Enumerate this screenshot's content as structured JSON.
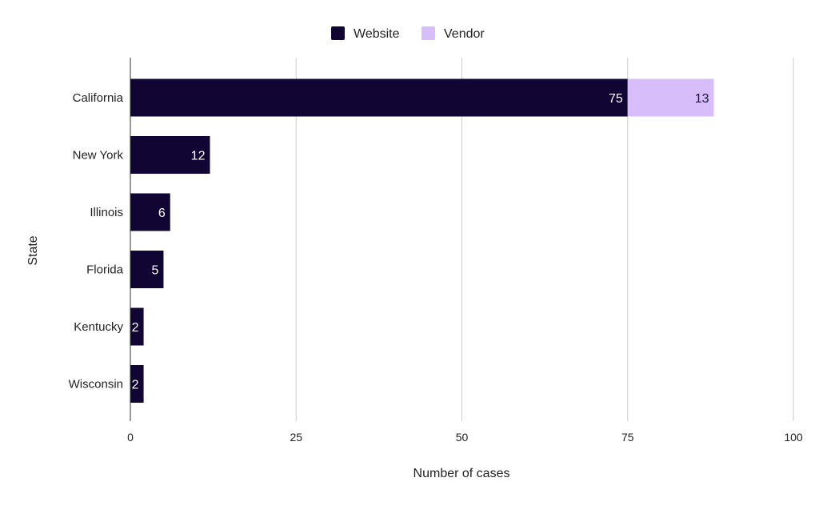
{
  "chart_data": {
    "type": "bar",
    "orientation": "horizontal",
    "stacked": true,
    "categories": [
      "California",
      "New York",
      "Illinois",
      "Florida",
      "Kentucky",
      "Wisconsin"
    ],
    "series": [
      {
        "name": "Website",
        "color": "#110633",
        "values": [
          75,
          12,
          6,
          5,
          2,
          2
        ]
      },
      {
        "name": "Vendor",
        "color": "#d8bdfb",
        "values": [
          13,
          0,
          0,
          0,
          0,
          0
        ]
      }
    ],
    "data_labels": true,
    "xlabel": "Number of cases",
    "ylabel": "State",
    "xlim": [
      0,
      100
    ],
    "xticks": [
      0,
      25,
      50,
      75,
      100
    ],
    "grid": "vertical",
    "legend_position": "top-center"
  }
}
